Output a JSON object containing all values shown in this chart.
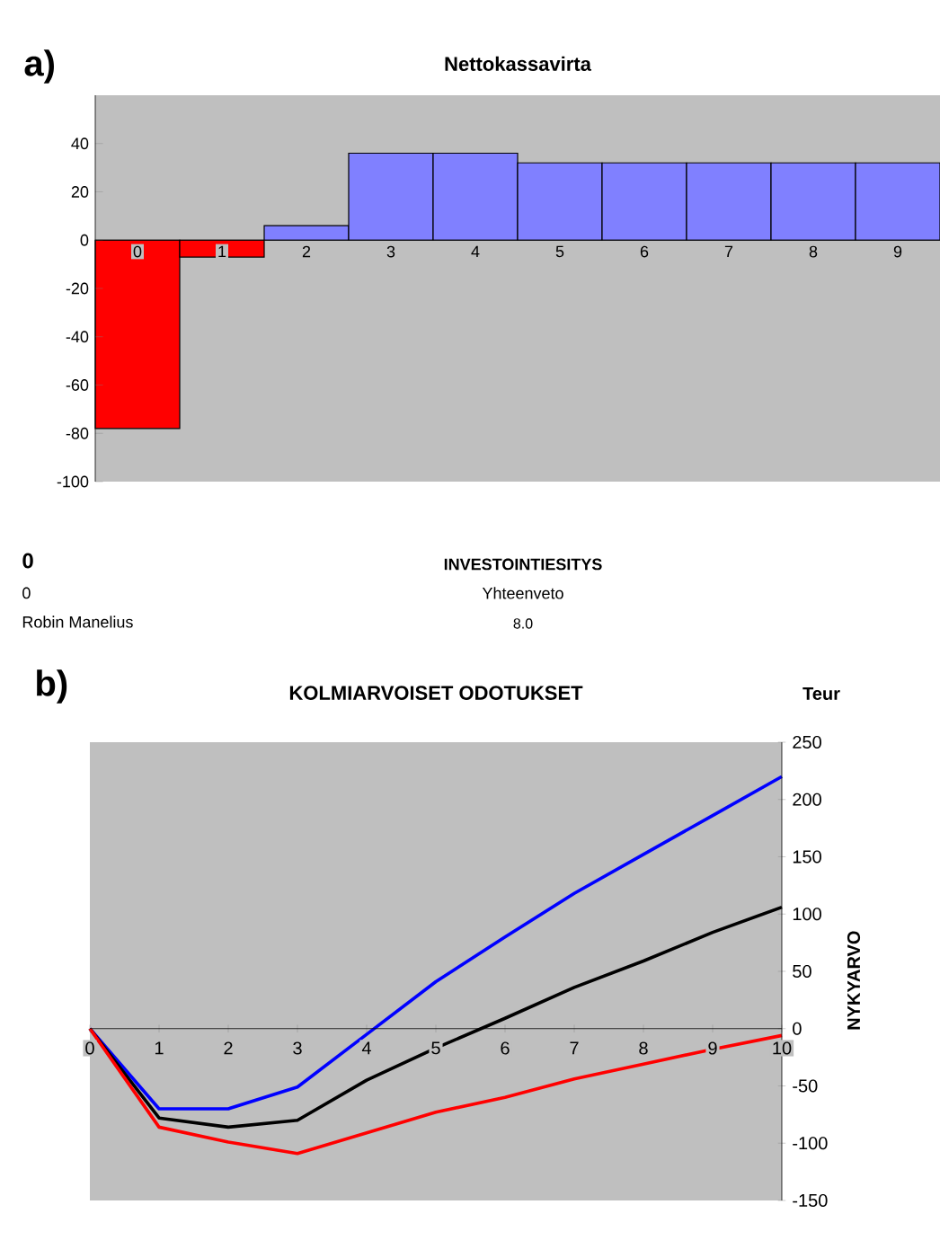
{
  "chart_data": [
    {
      "type": "bar",
      "title": "Nettokassavirta",
      "categories": [
        "0",
        "1",
        "2",
        "3",
        "4",
        "5",
        "6",
        "7",
        "8",
        "9"
      ],
      "values": [
        -78,
        -7,
        6,
        36,
        36,
        32,
        32,
        32,
        32,
        32
      ],
      "colors": [
        "#ff0000",
        "#ff0000",
        "#8080ff",
        "#8080ff",
        "#8080ff",
        "#8080ff",
        "#8080ff",
        "#8080ff",
        "#8080ff",
        "#8080ff"
      ],
      "ylim": [
        -100,
        60
      ],
      "yticks": [
        -100,
        -80,
        -60,
        -40,
        -20,
        0,
        20,
        40
      ],
      "annotations": [
        "a)",
        "0",
        "INVESTOINTIESITYS",
        "0",
        "Yhteenveto",
        "Robin Manelius",
        "8.0"
      ]
    },
    {
      "type": "line",
      "title": "KOLMIARVOISET ODOTUKSET",
      "y2label": "NYKYARVO",
      "x": [
        0,
        1,
        2,
        3,
        4,
        5,
        6,
        7,
        8,
        9,
        10
      ],
      "series": [
        {
          "color": "#0000ff",
          "axis": "y2",
          "values": [
            0,
            -70,
            -70,
            -51,
            -5,
            41,
            80,
            118,
            152,
            186,
            220
          ]
        },
        {
          "color": "#000000",
          "axis": "y2",
          "values": [
            0,
            -78,
            -86,
            -80,
            -45,
            -17,
            9,
            36,
            59,
            84,
            106
          ]
        },
        {
          "color": "#ff0000",
          "axis": "y2",
          "values": [
            0,
            -86,
            -99,
            -109,
            -91,
            -73,
            -60,
            -44,
            -31,
            -18,
            -6
          ]
        }
      ],
      "xlim": [
        0,
        10
      ],
      "xticks": [
        0,
        1,
        2,
        3,
        4,
        5,
        6,
        7,
        8,
        9,
        10
      ],
      "y2lim": [
        -150,
        250
      ],
      "y2ticks": [
        -150,
        -100,
        -50,
        0,
        50,
        100,
        150,
        200,
        250
      ],
      "marker": "none",
      "line_style": "solid",
      "annotations": [
        "b)",
        "Teur"
      ]
    }
  ]
}
